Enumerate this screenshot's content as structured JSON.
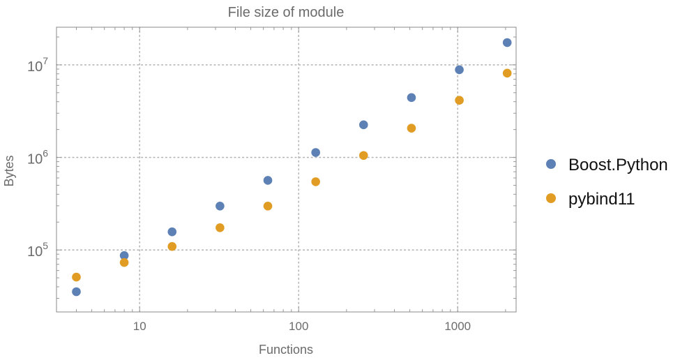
{
  "chart_data": {
    "type": "scatter",
    "title": "File size of module",
    "xlabel": "Functions",
    "ylabel": "Bytes",
    "xscale": "log",
    "yscale": "log",
    "xlim": [
      3.0,
      2330
    ],
    "ylim": [
      21400,
      25500000
    ],
    "grid": true,
    "legend_position": "right",
    "x_ticks": [
      {
        "value": 10,
        "label": "10"
      },
      {
        "value": 100,
        "label": "100"
      },
      {
        "value": 1000,
        "label": "1000"
      }
    ],
    "y_ticks": [
      {
        "value": 100000,
        "base": "10",
        "exp": "5"
      },
      {
        "value": 1000000,
        "base": "10",
        "exp": "6"
      },
      {
        "value": 10000000,
        "base": "10",
        "exp": "7"
      }
    ],
    "x": [
      4,
      8,
      16,
      32,
      64,
      128,
      256,
      512,
      1024,
      2048
    ],
    "series": [
      {
        "name": "Boost.Python",
        "color": "#5e81b5",
        "values": [
          35400,
          87000,
          157000,
          298000,
          565000,
          1130000,
          2250000,
          4430000,
          8860000,
          17400000
        ]
      },
      {
        "name": "pybind11",
        "color": "#e19c24",
        "values": [
          50900,
          73200,
          109000,
          174000,
          298000,
          546000,
          1050000,
          2070000,
          4140000,
          8130000
        ]
      }
    ]
  }
}
